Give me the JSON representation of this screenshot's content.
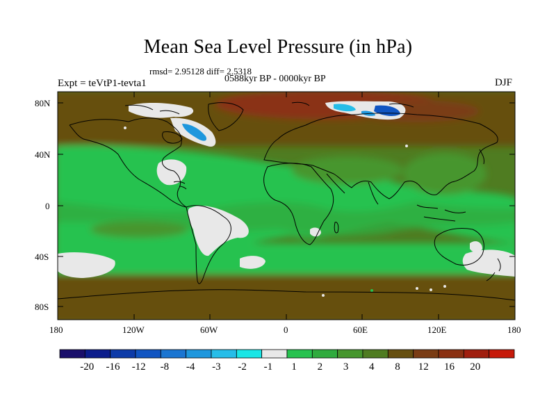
{
  "title": "Mean Sea Level Pressure (in hPa)",
  "stats": "rmsd= 2.95128 diff= 2.5318",
  "period": "0588kyr BP - 0000kyr BP",
  "experiment": "Expt = teVtP1-tevta1",
  "season": "DJF",
  "y_axis_labels": [
    "80N",
    "40N",
    "0",
    "40S",
    "80S"
  ],
  "x_axis_labels": [
    "180",
    "120W",
    "60W",
    "0",
    "60E",
    "120E",
    "180"
  ],
  "colorbar": {
    "colors": [
      "#1a0f6b",
      "#0c1d8c",
      "#0d3ba8",
      "#1155c2",
      "#1a75d1",
      "#1e97dd",
      "#26bde8",
      "#1ae6e6",
      "#e8e8e8",
      "#27c24f",
      "#2fab3e",
      "#46962d",
      "#4f7c21",
      "#664f10",
      "#7a3c14",
      "#8a3012",
      "#a01e0e",
      "#c61a0a"
    ],
    "tick_labels": [
      "-20",
      "-16",
      "-12",
      "-8",
      "-4",
      "-3",
      "-2",
      "-1",
      "1",
      "2",
      "3",
      "4",
      "8",
      "12",
      "16",
      "20"
    ]
  },
  "fill_colors": {
    "ocean_green": "#27c24f",
    "land_green": "#46962d",
    "olive": "#4f7c21",
    "brown": "#664f10",
    "red_brown": "#8a3012",
    "white": "#e8e8e8",
    "cyan": "#1ae6e6",
    "blue": "#1e97dd"
  }
}
